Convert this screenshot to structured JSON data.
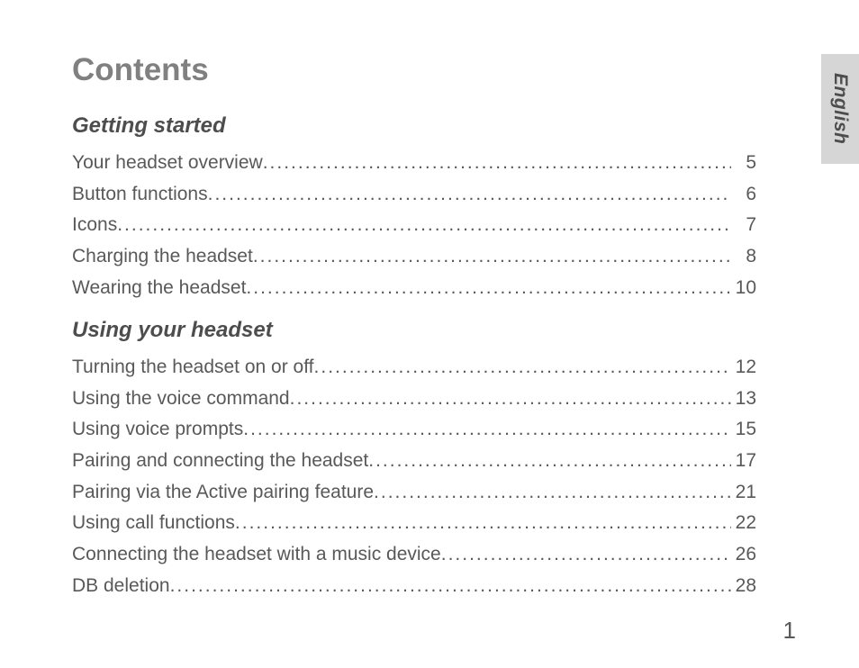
{
  "document": {
    "title": "Contents",
    "language_tab": "English",
    "page_number": "1",
    "colors": {
      "title": "#808080",
      "heading": "#4d4d4d",
      "body": "#595959",
      "tab_bg": "#d6d6d6",
      "page_bg": "#ffffff"
    },
    "typography": {
      "title_fontsize": 35,
      "heading_fontsize": 24,
      "body_fontsize": 21,
      "pagenum_fontsize": 26,
      "font_family": "Arial"
    },
    "sections": [
      {
        "heading": "Getting started",
        "entries": [
          {
            "label": "Your headset overview",
            "page": "5"
          },
          {
            "label": "Button functions",
            "page": "6"
          },
          {
            "label": "Icons",
            "page": "7"
          },
          {
            "label": "Charging the headset",
            "page": "8"
          },
          {
            "label": "Wearing the headset",
            "page": "10"
          }
        ]
      },
      {
        "heading": "Using your headset",
        "entries": [
          {
            "label": "Turning the headset on or off",
            "page": "12"
          },
          {
            "label": "Using the voice command",
            "page": "13"
          },
          {
            "label": "Using voice prompts",
            "page": "15"
          },
          {
            "label": "Pairing and connecting the headset",
            "page": "17"
          },
          {
            "label": "Pairing via the Active pairing feature",
            "page": "21"
          },
          {
            "label": "Using call functions",
            "page": "22"
          },
          {
            "label": "Connecting the headset with a music device",
            "page": "26"
          },
          {
            "label": "DB deletion",
            "page": "28"
          }
        ]
      }
    ]
  }
}
